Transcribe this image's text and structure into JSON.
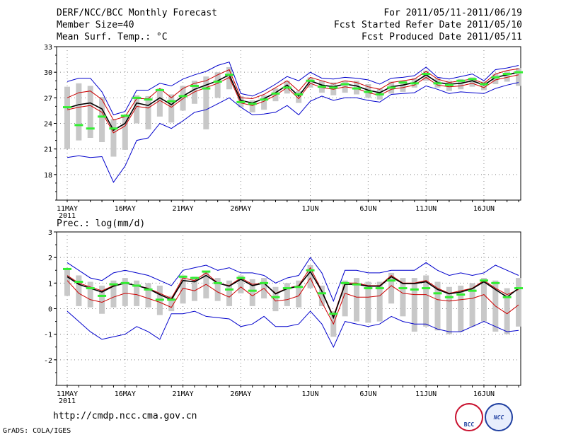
{
  "header": {
    "title": "DERF/NCC/BCC Monthly Forecast",
    "member_size": "Member Size=40",
    "variable": "Mean Surf. Temp.: °C",
    "period": "For 2011/05/11-2011/06/19",
    "refer_date": "Fcst Started Refer Date 2011/05/10",
    "produced_date": "Fcst Produced Date 2011/05/11"
  },
  "precip_label": "Prec.: log(mm/d)",
  "url": "http://cmdp.ncc.cma.gov.cn",
  "credit": "GrADS: COLA/IGES",
  "logos": {
    "bcc": "BCC",
    "ncc": "NCC"
  },
  "colors": {
    "envelope": "#0000cc",
    "ensemble_mean": "#000000",
    "inner_red": "#cc0000",
    "box": "#c8c8c8",
    "marker": "#33ee33"
  },
  "chart_data": [
    {
      "type": "box-line",
      "title": "Mean Surf. Temp.: °C",
      "x": "days from 11 May 2011 (0..39)",
      "x_ticks": [
        {
          "label": "11MAY",
          "day": 0,
          "sub": "2011"
        },
        {
          "label": "16MAY",
          "day": 5
        },
        {
          "label": "21MAY",
          "day": 10
        },
        {
          "label": "26MAY",
          "day": 15
        },
        {
          "label": "1JUN",
          "day": 21
        },
        {
          "label": "6JUN",
          "day": 26
        },
        {
          "label": "11JUN",
          "day": 31
        },
        {
          "label": "16JUN",
          "day": 36
        }
      ],
      "ylim": [
        15,
        33
      ],
      "y_ticks": [
        18,
        21,
        24,
        27,
        30,
        33
      ],
      "series": [
        {
          "name": "upper envelope",
          "values": [
            28.9,
            29.3,
            29.3,
            27.7,
            25.0,
            25.4,
            27.9,
            27.9,
            28.7,
            28.4,
            29.2,
            29.7,
            30.1,
            30.8,
            31.2,
            27.5,
            27.2,
            27.8,
            28.6,
            29.5,
            29.0,
            30.0,
            29.3,
            29.2,
            29.4,
            29.3,
            29.1,
            28.6,
            29.3,
            29.4,
            29.6,
            30.6,
            29.4,
            29.2,
            29.5,
            29.8,
            29.0,
            30.3,
            30.5,
            30.8
          ]
        },
        {
          "name": "upper red",
          "values": [
            27.0,
            27.6,
            27.8,
            26.8,
            24.4,
            24.8,
            26.9,
            26.9,
            28.1,
            27.0,
            28.1,
            28.7,
            29.0,
            29.7,
            30.3,
            27.0,
            26.9,
            27.4,
            28.2,
            29.0,
            27.8,
            29.4,
            29.0,
            28.6,
            29.0,
            28.8,
            28.3,
            28.0,
            28.8,
            29.0,
            29.2,
            30.1,
            29.2,
            28.8,
            29.0,
            29.2,
            28.7,
            29.8,
            30.2,
            30.4
          ]
        },
        {
          "name": "ensemble mean",
          "values": [
            25.8,
            26.2,
            26.4,
            25.7,
            23.2,
            24.0,
            26.4,
            26.1,
            27.0,
            26.2,
            27.2,
            28.0,
            28.5,
            29.0,
            29.7,
            26.7,
            26.4,
            26.9,
            27.6,
            28.5,
            27.2,
            29.0,
            28.5,
            28.3,
            28.6,
            28.4,
            27.9,
            27.6,
            28.3,
            28.5,
            28.8,
            29.7,
            28.8,
            28.6,
            28.7,
            29.0,
            28.5,
            29.4,
            29.7,
            30.0
          ]
        },
        {
          "name": "lower red",
          "values": [
            25.6,
            25.9,
            26.1,
            25.3,
            22.9,
            23.7,
            26.0,
            25.8,
            26.7,
            25.9,
            26.9,
            27.7,
            28.2,
            28.7,
            29.4,
            26.4,
            26.1,
            26.6,
            27.3,
            28.2,
            26.9,
            28.7,
            28.2,
            28.0,
            28.3,
            28.1,
            27.6,
            27.3,
            28.0,
            28.2,
            28.5,
            29.4,
            28.5,
            28.3,
            28.4,
            28.7,
            28.2,
            29.1,
            29.4,
            29.7
          ]
        },
        {
          "name": "lower envelope",
          "values": [
            20.0,
            20.2,
            20.0,
            20.1,
            17.1,
            19.0,
            22.0,
            22.3,
            24.0,
            23.4,
            24.3,
            25.3,
            25.6,
            26.3,
            27.0,
            25.9,
            25.0,
            25.1,
            25.3,
            26.1,
            25.0,
            26.6,
            27.2,
            26.7,
            27.0,
            27.0,
            26.7,
            26.5,
            27.4,
            27.5,
            27.6,
            28.4,
            28.0,
            27.5,
            27.7,
            27.6,
            27.5,
            28.1,
            28.5,
            28.8
          ]
        },
        {
          "name": "box high",
          "values": [
            28.3,
            28.7,
            28.4,
            27.1,
            24.5,
            24.9,
            27.3,
            27.2,
            28.1,
            27.4,
            28.4,
            29.0,
            29.5,
            30.0,
            30.6,
            27.2,
            26.7,
            27.3,
            28.1,
            29.0,
            27.8,
            29.4,
            29.0,
            28.8,
            29.0,
            29.0,
            28.6,
            28.1,
            28.9,
            29.0,
            29.3,
            30.2,
            29.3,
            29.0,
            29.2,
            29.4,
            28.9,
            29.8,
            30.1,
            30.5
          ]
        },
        {
          "name": "box low",
          "values": [
            21.0,
            22.0,
            22.3,
            21.8,
            20.1,
            20.9,
            24.0,
            23.3,
            24.8,
            24.1,
            25.5,
            26.3,
            23.3,
            27.0,
            28.0,
            25.9,
            25.3,
            25.6,
            26.6,
            27.5,
            26.4,
            28.2,
            27.6,
            27.3,
            27.6,
            27.4,
            27.0,
            26.8,
            27.5,
            27.7,
            28.2,
            29.0,
            28.2,
            27.8,
            28.0,
            28.3,
            27.9,
            28.6,
            28.9,
            28.4
          ]
        },
        {
          "name": "ensemble marker",
          "values": [
            25.9,
            23.8,
            23.4,
            24.8,
            23.4,
            24.9,
            27.0,
            26.8,
            27.9,
            26.6,
            27.2,
            28.4,
            28.1,
            28.9,
            29.7,
            26.5,
            26.3,
            26.8,
            27.5,
            28.2,
            27.4,
            29.0,
            28.3,
            28.2,
            28.6,
            28.1,
            27.7,
            27.4,
            28.2,
            28.8,
            28.7,
            29.8,
            28.7,
            28.5,
            29.0,
            29.2,
            28.6,
            29.4,
            29.8,
            30.0
          ]
        }
      ]
    },
    {
      "type": "box-line",
      "title": "Prec.: log(mm/d)",
      "x": "days from 11 May 2011 (0..39)",
      "x_ticks": [
        {
          "label": "11MAY",
          "day": 0,
          "sub": "2011"
        },
        {
          "label": "16MAY",
          "day": 5
        },
        {
          "label": "21MAY",
          "day": 10
        },
        {
          "label": "26MAY",
          "day": 15
        },
        {
          "label": "1JUN",
          "day": 21
        },
        {
          "label": "6JUN",
          "day": 26
        },
        {
          "label": "11JUN",
          "day": 31
        },
        {
          "label": "16JUN",
          "day": 36
        }
      ],
      "ylim": [
        -3,
        3
      ],
      "y_ticks": [
        -2,
        -1,
        0,
        1,
        2,
        3
      ],
      "series": [
        {
          "name": "upper envelope",
          "values": [
            1.8,
            1.5,
            1.2,
            1.1,
            1.4,
            1.5,
            1.4,
            1.3,
            1.1,
            0.9,
            1.5,
            1.6,
            1.7,
            1.5,
            1.6,
            1.4,
            1.4,
            1.3,
            1.0,
            1.2,
            1.3,
            2.0,
            1.4,
            0.3,
            1.5,
            1.5,
            1.4,
            1.4,
            1.5,
            1.5,
            1.5,
            1.8,
            1.5,
            1.3,
            1.4,
            1.3,
            1.4,
            1.7,
            1.5,
            1.3
          ]
        },
        {
          "name": "upper red",
          "values": [
            1.3,
            1.0,
            0.85,
            0.7,
            0.9,
            1.0,
            0.9,
            0.8,
            0.6,
            0.4,
            1.2,
            1.1,
            1.4,
            1.0,
            0.9,
            1.2,
            0.95,
            1.0,
            0.6,
            0.8,
            0.9,
            1.6,
            0.7,
            -0.3,
            1.0,
            1.0,
            0.9,
            0.9,
            1.3,
            1.0,
            1.0,
            1.1,
            0.8,
            0.6,
            0.7,
            0.8,
            1.1,
            0.8,
            0.55,
            0.75
          ]
        },
        {
          "name": "ensemble mean",
          "values": [
            1.25,
            0.95,
            0.8,
            0.65,
            0.88,
            1.0,
            0.9,
            0.78,
            0.55,
            0.35,
            1.1,
            1.05,
            1.3,
            1.0,
            0.88,
            1.15,
            0.9,
            1.0,
            0.58,
            0.78,
            0.88,
            1.45,
            0.68,
            -0.35,
            0.95,
            0.95,
            0.88,
            0.88,
            1.25,
            0.98,
            0.98,
            1.05,
            0.75,
            0.58,
            0.65,
            0.78,
            1.05,
            0.75,
            0.45,
            0.8
          ]
        },
        {
          "name": "lower red",
          "values": [
            1.1,
            0.6,
            0.35,
            0.25,
            0.45,
            0.6,
            0.55,
            0.4,
            0.25,
            0.05,
            0.8,
            0.7,
            0.95,
            0.65,
            0.45,
            0.85,
            0.5,
            0.8,
            0.3,
            0.35,
            0.5,
            1.2,
            0.25,
            -0.6,
            0.6,
            0.45,
            0.45,
            0.5,
            0.9,
            0.6,
            0.55,
            0.55,
            0.35,
            0.3,
            0.35,
            0.4,
            0.55,
            0.1,
            -0.2,
            0.15
          ]
        },
        {
          "name": "lower envelope",
          "values": [
            -0.1,
            -0.5,
            -0.9,
            -1.2,
            -1.1,
            -1.0,
            -0.7,
            -0.9,
            -1.2,
            -0.2,
            -0.2,
            -0.1,
            -0.3,
            -0.35,
            -0.4,
            -0.7,
            -0.6,
            -0.3,
            -0.7,
            -0.7,
            -0.6,
            -0.1,
            -0.6,
            -1.5,
            -0.5,
            -0.6,
            -0.7,
            -0.6,
            -0.3,
            -0.5,
            -0.6,
            -0.6,
            -0.8,
            -0.9,
            -0.9,
            -0.7,
            -0.5,
            -0.7,
            -0.9,
            -0.85
          ]
        },
        {
          "name": "box high",
          "values": [
            1.55,
            1.3,
            1.05,
            0.9,
            1.1,
            1.2,
            1.1,
            1.0,
            0.9,
            0.5,
            1.3,
            1.25,
            1.45,
            1.2,
            1.1,
            1.3,
            1.15,
            1.2,
            0.85,
            1.0,
            1.1,
            1.7,
            0.9,
            -0.1,
            1.1,
            1.2,
            1.05,
            1.05,
            1.4,
            1.2,
            1.2,
            1.3,
            1.05,
            0.85,
            0.9,
            1.0,
            1.2,
            1.1,
            0.8,
            1.2
          ]
        },
        {
          "name": "box low",
          "values": [
            0.5,
            0.1,
            0.05,
            -0.2,
            0.05,
            0.1,
            0.1,
            0.05,
            -0.25,
            -0.1,
            0.2,
            0.3,
            0.4,
            0.3,
            0.1,
            0.6,
            0.1,
            0.4,
            -0.1,
            0.1,
            0.05,
            0.8,
            0.1,
            -1.1,
            -0.3,
            -0.5,
            -0.55,
            -0.5,
            0.2,
            -0.3,
            -0.9,
            -0.7,
            -0.85,
            -1.0,
            -0.9,
            -0.7,
            -0.5,
            -0.9,
            -1.0,
            -0.7
          ]
        },
        {
          "name": "ensemble marker",
          "values": [
            1.55,
            1.05,
            0.8,
            0.5,
            0.95,
            1.0,
            0.9,
            0.75,
            0.35,
            0.35,
            1.25,
            1.2,
            1.45,
            1.0,
            0.75,
            1.2,
            0.7,
            1.0,
            0.45,
            0.8,
            0.85,
            1.5,
            0.6,
            -0.2,
            1.0,
            0.95,
            0.8,
            0.8,
            1.1,
            0.8,
            0.75,
            0.8,
            0.6,
            0.45,
            0.55,
            0.7,
            1.1,
            1.0,
            0.45,
            0.8
          ]
        }
      ]
    }
  ]
}
